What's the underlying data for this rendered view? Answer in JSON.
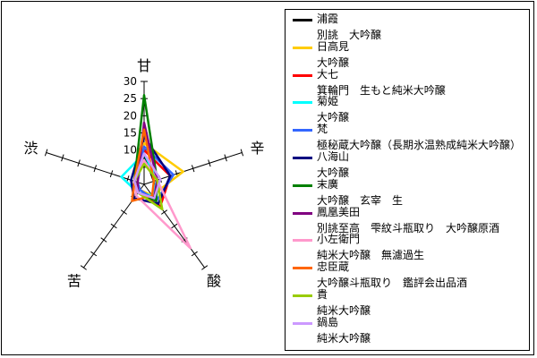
{
  "chart_data": {
    "type": "radar",
    "axes": [
      "甘",
      "辛",
      "酸",
      "苦",
      "渋"
    ],
    "rlim": [
      0,
      30
    ],
    "r_ticks": [
      "30",
      "25",
      "20",
      "15",
      "10"
    ],
    "grid": false,
    "legend_position": "right",
    "series": [
      {
        "name": "浦霞",
        "subtitle": "別誂　大吟醸",
        "color": "#000000",
        "values": [
          9,
          3,
          5,
          3,
          3
        ]
      },
      {
        "name": "日高見",
        "subtitle": "大吟醸",
        "color": "#ffcc00",
        "values": [
          12,
          12,
          4,
          2,
          2
        ]
      },
      {
        "name": "大七",
        "subtitle": "箕輪門　生もと純米大吟醸",
        "color": "#ff0000",
        "values": [
          10,
          8,
          8,
          3,
          3
        ]
      },
      {
        "name": "菊姫",
        "subtitle": "大吟醸",
        "color": "#00ffff",
        "values": [
          9,
          4,
          4,
          3,
          7
        ]
      },
      {
        "name": "梵",
        "subtitle": "極秘蔵大吟醸（長期氷温熟成純米大吟醸）",
        "color": "#3366ff",
        "values": [
          11,
          9,
          6,
          2,
          2
        ]
      },
      {
        "name": "八海山",
        "subtitle": "大吟醸",
        "color": "#000080",
        "values": [
          14,
          8,
          7,
          5,
          4
        ]
      },
      {
        "name": "末廣",
        "subtitle": "大吟醸　玄宰　生",
        "color": "#008000",
        "values": [
          26,
          4,
          6,
          3,
          3
        ]
      },
      {
        "name": "鳳凰美田",
        "subtitle": "別誂至高　雫紋斗瓶取り　大吟醸原酒",
        "color": "#800080",
        "values": [
          18,
          4,
          5,
          3,
          2
        ]
      },
      {
        "name": "小左衛門",
        "subtitle": "純米大吟醸　無濾過生",
        "color": "#ff99cc",
        "values": [
          7,
          4,
          23,
          4,
          3
        ]
      },
      {
        "name": "忠臣蔵",
        "subtitle": "大吟醸斗瓶取り　鑑評会出品酒",
        "color": "#ff6600",
        "values": [
          16,
          3,
          4,
          6,
          3
        ]
      },
      {
        "name": "貴",
        "subtitle": "純米大吟醸",
        "color": "#99cc00",
        "values": [
          6,
          4,
          9,
          3,
          3
        ]
      },
      {
        "name": "鍋島",
        "subtitle": "純米大吟醸",
        "color": "#cc99ff",
        "values": [
          9,
          5,
          5,
          3,
          3
        ]
      }
    ]
  }
}
